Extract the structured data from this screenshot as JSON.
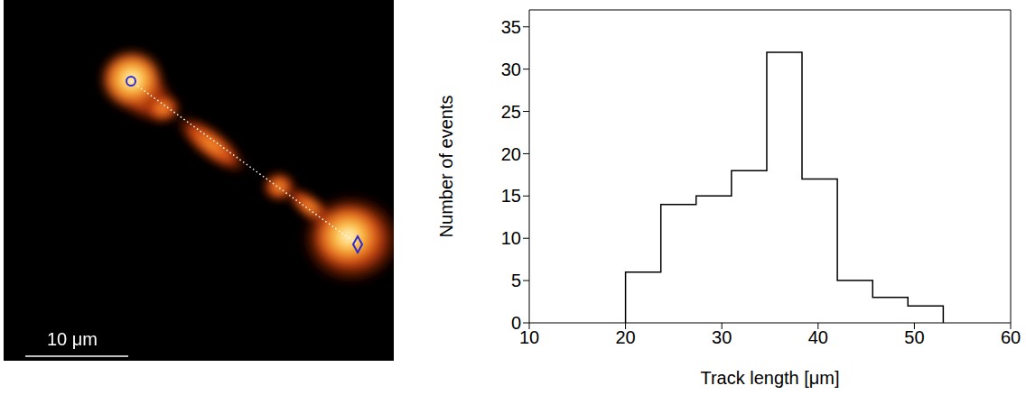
{
  "chart_data": [
    {
      "type": "image",
      "scale_bar": "10 μm"
    },
    {
      "type": "histogram",
      "bins": [
        20,
        23.67,
        27.33,
        31,
        34.67,
        38.33,
        42,
        45.67,
        49.33,
        53
      ],
      "counts": [
        6,
        14,
        15,
        18,
        32,
        17,
        5,
        3,
        2
      ],
      "x_label": "Track length [μm]",
      "y_label": "Number of events",
      "xlim": [
        10,
        60
      ],
      "xticks": [
        10,
        20,
        30,
        40,
        50,
        60
      ],
      "ylim": [
        0,
        37
      ],
      "yticks": [
        0,
        5,
        10,
        15,
        20,
        25,
        30,
        35
      ],
      "color": "#000000",
      "grid": false
    }
  ]
}
